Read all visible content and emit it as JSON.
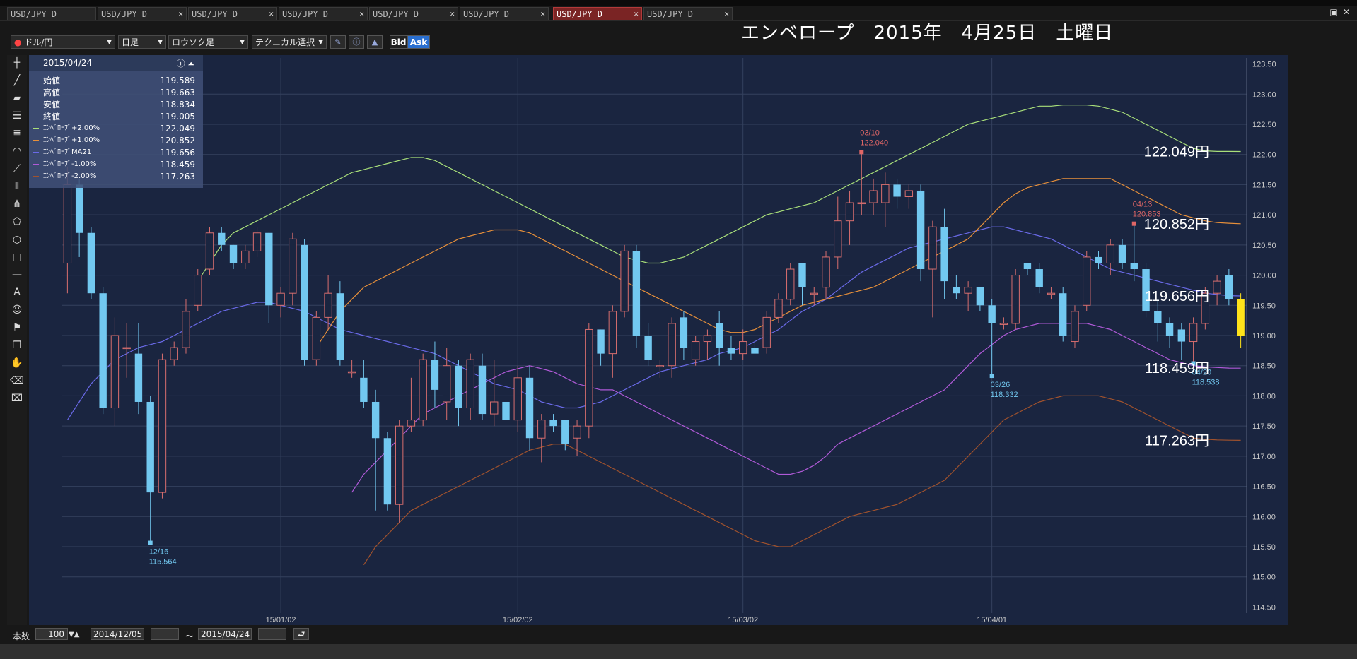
{
  "tabs": [
    {
      "label": "USD/JPY D",
      "active": false
    },
    {
      "label": "USD/JPY D",
      "active": false
    },
    {
      "label": "USD/JPY D",
      "active": false
    },
    {
      "label": "USD/JPY D",
      "active": false
    },
    {
      "label": "USD/JPY D",
      "active": false
    },
    {
      "label": "USD/JPY D",
      "active": false
    },
    {
      "label": "USD/JPY D",
      "active": true
    },
    {
      "label": "USD/JPY D",
      "active": false
    }
  ],
  "toolbar": {
    "pair": "ドル/円",
    "period": "日足",
    "chart_type": "ロウソク足",
    "technical": "テクニカル選択",
    "bid": "Bid",
    "ask": "Ask"
  },
  "overlay_title": "エンベロープ　2015年　4月25日　土曜日",
  "info": {
    "date": "2015/04/24",
    "rows": [
      {
        "label": "始値",
        "value": "119.589"
      },
      {
        "label": "高値",
        "value": "119.663"
      },
      {
        "label": "安値",
        "value": "118.834"
      },
      {
        "label": "終値",
        "value": "119.005"
      }
    ],
    "indicators": [
      {
        "label": "ｴﾝﾍﾞﾛｰﾌﾟ+2.00%",
        "value": "122.049",
        "color": "#a9e07a"
      },
      {
        "label": "ｴﾝﾍﾞﾛｰﾌﾟ+1.00%",
        "value": "120.852",
        "color": "#e8903a"
      },
      {
        "label": "ｴﾝﾍﾞﾛｰﾌﾟMA21",
        "value": "119.656",
        "color": "#6a6ae8"
      },
      {
        "label": "ｴﾝﾍﾞﾛｰﾌﾟ-1.00%",
        "value": "118.459",
        "color": "#b05ad8"
      },
      {
        "label": "ｴﾝﾍﾞﾛｰﾌﾟ-2.00%",
        "value": "117.263",
        "color": "#a0522d"
      }
    ]
  },
  "colors": {
    "bg": "#1a2540",
    "grid": "#34415e",
    "up": "#d86e6e",
    "down": "#72c8f0",
    "current": "#ffe31a",
    "env_p2": "#a9e07a",
    "env_p1": "#e8903a",
    "ma21": "#6a6ae8",
    "env_m1": "#b05ad8",
    "env_m2": "#a0522d"
  },
  "chart_data": {
    "type": "candlestick",
    "y_ticks": [
      "123.50",
      "123.00",
      "122.50",
      "122.00",
      "121.50",
      "121.00",
      "120.50",
      "120.00",
      "119.50",
      "119.00",
      "118.50",
      "118.00",
      "117.50",
      "117.00",
      "116.50",
      "116.00",
      "115.50",
      "115.00",
      "114.50"
    ],
    "x_ticks": [
      "15/01/02",
      "15/02/02",
      "15/03/02",
      "15/04/01"
    ],
    "x_tick_index": [
      18,
      38,
      57,
      78
    ],
    "ylim": [
      114.4,
      123.6
    ],
    "candles": [
      {
        "o": 120.2,
        "h": 121.8,
        "l": 119.7,
        "c": 121.5
      },
      {
        "o": 121.5,
        "h": 121.6,
        "l": 120.3,
        "c": 120.7
      },
      {
        "o": 120.7,
        "h": 120.8,
        "l": 119.6,
        "c": 119.7
      },
      {
        "o": 119.7,
        "h": 119.8,
        "l": 117.7,
        "c": 117.8
      },
      {
        "o": 117.8,
        "h": 119.3,
        "l": 117.5,
        "c": 119.0
      },
      {
        "o": 118.8,
        "h": 119.2,
        "l": 118.3,
        "c": 118.8
      },
      {
        "o": 118.7,
        "h": 119.2,
        "l": 117.7,
        "c": 117.9
      },
      {
        "o": 117.9,
        "h": 118.0,
        "l": 115.564,
        "c": 116.4
      },
      {
        "o": 116.4,
        "h": 118.7,
        "l": 116.3,
        "c": 118.6
      },
      {
        "o": 118.6,
        "h": 118.9,
        "l": 118.5,
        "c": 118.8
      },
      {
        "o": 118.8,
        "h": 119.6,
        "l": 118.7,
        "c": 119.4
      },
      {
        "o": 119.5,
        "h": 120.1,
        "l": 119.4,
        "c": 120.0
      },
      {
        "o": 120.1,
        "h": 120.8,
        "l": 120.0,
        "c": 120.7
      },
      {
        "o": 120.7,
        "h": 120.8,
        "l": 120.4,
        "c": 120.5
      },
      {
        "o": 120.5,
        "h": 120.5,
        "l": 120.1,
        "c": 120.2
      },
      {
        "o": 120.2,
        "h": 120.5,
        "l": 120.1,
        "c": 120.4
      },
      {
        "o": 120.4,
        "h": 120.8,
        "l": 120.3,
        "c": 120.7
      },
      {
        "o": 120.7,
        "h": 120.7,
        "l": 119.2,
        "c": 119.5
      },
      {
        "o": 119.5,
        "h": 119.8,
        "l": 119.3,
        "c": 119.7
      },
      {
        "o": 119.7,
        "h": 120.7,
        "l": 119.5,
        "c": 120.6
      },
      {
        "o": 120.5,
        "h": 120.6,
        "l": 118.5,
        "c": 118.6
      },
      {
        "o": 118.6,
        "h": 119.4,
        "l": 118.5,
        "c": 119.3
      },
      {
        "o": 119.3,
        "h": 120.0,
        "l": 119.1,
        "c": 119.7
      },
      {
        "o": 119.7,
        "h": 119.9,
        "l": 118.5,
        "c": 118.6
      },
      {
        "o": 118.4,
        "h": 118.6,
        "l": 118.3,
        "c": 118.4
      },
      {
        "o": 118.3,
        "h": 118.6,
        "l": 117.8,
        "c": 117.9
      },
      {
        "o": 117.9,
        "h": 118.1,
        "l": 116.1,
        "c": 117.3
      },
      {
        "o": 117.3,
        "h": 117.4,
        "l": 116.1,
        "c": 116.2
      },
      {
        "o": 116.2,
        "h": 117.6,
        "l": 115.9,
        "c": 117.5
      },
      {
        "o": 117.5,
        "h": 118.3,
        "l": 117.4,
        "c": 117.6
      },
      {
        "o": 117.6,
        "h": 118.7,
        "l": 117.5,
        "c": 118.6
      },
      {
        "o": 118.6,
        "h": 118.9,
        "l": 117.8,
        "c": 118.1
      },
      {
        "o": 117.9,
        "h": 118.8,
        "l": 117.6,
        "c": 118.5
      },
      {
        "o": 118.5,
        "h": 118.6,
        "l": 117.5,
        "c": 117.8
      },
      {
        "o": 117.8,
        "h": 118.7,
        "l": 117.6,
        "c": 118.6
      },
      {
        "o": 118.5,
        "h": 118.7,
        "l": 117.6,
        "c": 117.7
      },
      {
        "o": 117.7,
        "h": 118.6,
        "l": 117.5,
        "c": 117.9
      },
      {
        "o": 117.9,
        "h": 117.9,
        "l": 117.5,
        "c": 117.6
      },
      {
        "o": 117.6,
        "h": 118.5,
        "l": 117.4,
        "c": 118.3
      },
      {
        "o": 118.3,
        "h": 118.5,
        "l": 117.1,
        "c": 117.3
      },
      {
        "o": 117.3,
        "h": 117.7,
        "l": 116.9,
        "c": 117.6
      },
      {
        "o": 117.6,
        "h": 117.7,
        "l": 117.4,
        "c": 117.5
      },
      {
        "o": 117.6,
        "h": 117.6,
        "l": 117.1,
        "c": 117.2
      },
      {
        "o": 117.3,
        "h": 117.6,
        "l": 117.0,
        "c": 117.5
      },
      {
        "o": 117.5,
        "h": 119.2,
        "l": 117.3,
        "c": 119.1
      },
      {
        "o": 119.1,
        "h": 119.1,
        "l": 118.5,
        "c": 118.7
      },
      {
        "o": 118.7,
        "h": 119.5,
        "l": 118.3,
        "c": 119.4
      },
      {
        "o": 119.4,
        "h": 120.5,
        "l": 119.3,
        "c": 120.4
      },
      {
        "o": 120.4,
        "h": 120.5,
        "l": 118.8,
        "c": 119.0
      },
      {
        "o": 119.0,
        "h": 119.2,
        "l": 118.5,
        "c": 118.6
      },
      {
        "o": 118.5,
        "h": 118.6,
        "l": 118.3,
        "c": 118.5
      },
      {
        "o": 118.5,
        "h": 119.3,
        "l": 118.3,
        "c": 119.2
      },
      {
        "o": 119.3,
        "h": 119.4,
        "l": 118.6,
        "c": 118.8
      },
      {
        "o": 118.6,
        "h": 119.0,
        "l": 118.5,
        "c": 118.9
      },
      {
        "o": 118.9,
        "h": 119.1,
        "l": 118.6,
        "c": 119.0
      },
      {
        "o": 119.2,
        "h": 119.4,
        "l": 118.5,
        "c": 118.8
      },
      {
        "o": 118.8,
        "h": 119.0,
        "l": 118.6,
        "c": 118.7
      },
      {
        "o": 118.7,
        "h": 119.1,
        "l": 118.6,
        "c": 118.9
      },
      {
        "o": 118.8,
        "h": 118.9,
        "l": 118.7,
        "c": 118.7
      },
      {
        "o": 118.8,
        "h": 119.4,
        "l": 118.7,
        "c": 119.3
      },
      {
        "o": 119.3,
        "h": 119.7,
        "l": 119.2,
        "c": 119.6
      },
      {
        "o": 119.6,
        "h": 120.2,
        "l": 119.5,
        "c": 120.1
      },
      {
        "o": 120.2,
        "h": 120.2,
        "l": 119.5,
        "c": 119.8
      },
      {
        "o": 119.7,
        "h": 119.8,
        "l": 119.5,
        "c": 119.7
      },
      {
        "o": 119.8,
        "h": 120.4,
        "l": 119.6,
        "c": 120.3
      },
      {
        "o": 120.3,
        "h": 121.3,
        "l": 120.1,
        "c": 120.9
      },
      {
        "o": 120.9,
        "h": 121.4,
        "l": 120.5,
        "c": 121.2
      },
      {
        "o": 121.2,
        "h": 122.04,
        "l": 121.0,
        "c": 121.2
      },
      {
        "o": 121.2,
        "h": 121.6,
        "l": 121.0,
        "c": 121.4
      },
      {
        "o": 121.2,
        "h": 121.7,
        "l": 120.8,
        "c": 121.5
      },
      {
        "o": 121.5,
        "h": 121.6,
        "l": 121.1,
        "c": 121.3
      },
      {
        "o": 121.3,
        "h": 121.5,
        "l": 121.1,
        "c": 121.4
      },
      {
        "o": 121.4,
        "h": 121.5,
        "l": 119.9,
        "c": 120.1
      },
      {
        "o": 120.1,
        "h": 120.9,
        "l": 119.3,
        "c": 120.8
      },
      {
        "o": 120.8,
        "h": 121.1,
        "l": 119.6,
        "c": 119.9
      },
      {
        "o": 119.8,
        "h": 120.0,
        "l": 119.6,
        "c": 119.7
      },
      {
        "o": 119.7,
        "h": 119.9,
        "l": 119.4,
        "c": 119.8
      },
      {
        "o": 119.8,
        "h": 119.8,
        "l": 119.4,
        "c": 119.5
      },
      {
        "o": 119.5,
        "h": 119.6,
        "l": 118.332,
        "c": 119.2
      },
      {
        "o": 119.2,
        "h": 119.3,
        "l": 119.1,
        "c": 119.2
      },
      {
        "o": 119.2,
        "h": 120.1,
        "l": 119.1,
        "c": 120.0
      },
      {
        "o": 120.2,
        "h": 120.2,
        "l": 120.0,
        "c": 120.1
      },
      {
        "o": 120.1,
        "h": 120.2,
        "l": 119.7,
        "c": 119.8
      },
      {
        "o": 119.7,
        "h": 119.8,
        "l": 119.6,
        "c": 119.7
      },
      {
        "o": 119.7,
        "h": 119.8,
        "l": 118.9,
        "c": 119.0
      },
      {
        "o": 118.9,
        "h": 119.5,
        "l": 118.8,
        "c": 119.4
      },
      {
        "o": 119.5,
        "h": 120.4,
        "l": 119.4,
        "c": 120.3
      },
      {
        "o": 120.3,
        "h": 120.4,
        "l": 120.1,
        "c": 120.2
      },
      {
        "o": 120.2,
        "h": 120.6,
        "l": 120.0,
        "c": 120.5
      },
      {
        "o": 120.5,
        "h": 120.6,
        "l": 120.1,
        "c": 120.2
      },
      {
        "o": 120.2,
        "h": 120.853,
        "l": 119.9,
        "c": 120.1
      },
      {
        "o": 120.1,
        "h": 120.2,
        "l": 119.3,
        "c": 119.4
      },
      {
        "o": 119.4,
        "h": 119.6,
        "l": 118.9,
        "c": 119.2
      },
      {
        "o": 119.2,
        "h": 119.3,
        "l": 118.8,
        "c": 119.0
      },
      {
        "o": 119.1,
        "h": 119.2,
        "l": 118.6,
        "c": 118.9
      },
      {
        "o": 118.9,
        "h": 119.3,
        "l": 118.538,
        "c": 119.2
      },
      {
        "o": 119.2,
        "h": 119.8,
        "l": 119.1,
        "c": 119.7
      },
      {
        "o": 119.7,
        "h": 120.0,
        "l": 119.5,
        "c": 119.9
      },
      {
        "o": 120.0,
        "h": 120.1,
        "l": 119.5,
        "c": 119.6
      },
      {
        "o": 119.6,
        "h": 119.7,
        "l": 118.8,
        "c": 119.0
      }
    ],
    "envelope": {
      "ma21": [
        117.6,
        117.9,
        118.2,
        118.4,
        118.6,
        118.7,
        118.8,
        118.85,
        118.9,
        119.0,
        119.1,
        119.2,
        119.3,
        119.4,
        119.45,
        119.5,
        119.55,
        119.55,
        119.5,
        119.45,
        119.4,
        119.3,
        119.2,
        119.1,
        119.05,
        119.0,
        118.95,
        118.9,
        118.85,
        118.8,
        118.75,
        118.7,
        118.6,
        118.5,
        118.4,
        118.3,
        118.2,
        118.15,
        118.1,
        118.0,
        117.9,
        117.85,
        117.8,
        117.8,
        117.85,
        117.9,
        118.0,
        118.1,
        118.2,
        118.3,
        118.4,
        118.45,
        118.5,
        118.55,
        118.6,
        118.7,
        118.75,
        118.8,
        118.9,
        119.0,
        119.1,
        119.25,
        119.4,
        119.5,
        119.6,
        119.75,
        119.9,
        120.05,
        120.15,
        120.25,
        120.35,
        120.45,
        120.5,
        120.55,
        120.6,
        120.65,
        120.7,
        120.75,
        120.8,
        120.8,
        120.75,
        120.7,
        120.65,
        120.6,
        120.5,
        120.4,
        120.3,
        120.2,
        120.1,
        120.05,
        120.0,
        119.95,
        119.9,
        119.85,
        119.8,
        119.75,
        119.7,
        119.68,
        119.66,
        119.656
      ],
      "env_p2": [
        119.9,
        120.2,
        120.5,
        120.7,
        120.8,
        120.9,
        121.0,
        121.1,
        121.2,
        121.3,
        121.4,
        121.5,
        121.6,
        121.7,
        121.75,
        121.8,
        121.85,
        121.9,
        121.95,
        121.95,
        121.9,
        121.8,
        121.7,
        121.6,
        121.5,
        121.4,
        121.3,
        121.2,
        121.1,
        121.0,
        120.9,
        120.8,
        120.7,
        120.6,
        120.5,
        120.4,
        120.3,
        120.25,
        120.2,
        120.2,
        120.25,
        120.3,
        120.4,
        120.5,
        120.6,
        120.7,
        120.8,
        120.9,
        121.0,
        121.05,
        121.1,
        121.15,
        121.2,
        121.3,
        121.4,
        121.5,
        121.6,
        121.7,
        121.8,
        121.9,
        122.0,
        122.1,
        122.2,
        122.3,
        122.4,
        122.5,
        122.55,
        122.6,
        122.65,
        122.7,
        122.75,
        122.8,
        122.8,
        122.82,
        122.82,
        122.82,
        122.8,
        122.75,
        122.7,
        122.6,
        122.5,
        122.4,
        122.3,
        122.2,
        122.1,
        122.06,
        122.05,
        122.05,
        122.049
      ],
      "env_p1": [
        118.8,
        119.1,
        119.4,
        119.6,
        119.8,
        119.9,
        120.0,
        120.1,
        120.2,
        120.3,
        120.4,
        120.5,
        120.6,
        120.65,
        120.7,
        120.75,
        120.75,
        120.75,
        120.7,
        120.6,
        120.5,
        120.4,
        120.3,
        120.2,
        120.1,
        120.0,
        119.9,
        119.8,
        119.7,
        119.6,
        119.5,
        119.4,
        119.3,
        119.2,
        119.1,
        119.05,
        119.05,
        119.1,
        119.2,
        119.3,
        119.4,
        119.5,
        119.55,
        119.6,
        119.65,
        119.7,
        119.75,
        119.8,
        119.9,
        120.0,
        120.1,
        120.2,
        120.3,
        120.4,
        120.5,
        120.6,
        120.8,
        121.0,
        121.2,
        121.35,
        121.45,
        121.5,
        121.55,
        121.6,
        121.6,
        121.6,
        121.6,
        121.6,
        121.5,
        121.4,
        121.3,
        121.2,
        121.1,
        121.0,
        120.95,
        120.9,
        120.87,
        120.86,
        120.852
      ],
      "env_m1": [
        116.4,
        116.7,
        116.9,
        117.1,
        117.3,
        117.5,
        117.7,
        117.8,
        117.9,
        118.0,
        118.1,
        118.2,
        118.3,
        118.4,
        118.45,
        118.5,
        118.45,
        118.4,
        118.3,
        118.2,
        118.15,
        118.1,
        118.1,
        118.0,
        117.9,
        117.8,
        117.7,
        117.6,
        117.5,
        117.4,
        117.3,
        117.2,
        117.1,
        117.0,
        116.9,
        116.8,
        116.7,
        116.7,
        116.75,
        116.85,
        117.0,
        117.2,
        117.3,
        117.4,
        117.5,
        117.6,
        117.7,
        117.8,
        117.9,
        118.0,
        118.1,
        118.3,
        118.5,
        118.7,
        118.85,
        119.0,
        119.1,
        119.15,
        119.2,
        119.2,
        119.2,
        119.2,
        119.2,
        119.15,
        119.1,
        119.0,
        118.9,
        118.8,
        118.7,
        118.6,
        118.55,
        118.5,
        118.48,
        118.47,
        118.46,
        118.459
      ],
      "env_m2": [
        115.2,
        115.5,
        115.7,
        115.9,
        116.1,
        116.2,
        116.3,
        116.4,
        116.5,
        116.6,
        116.7,
        116.8,
        116.9,
        117.0,
        117.1,
        117.15,
        117.2,
        117.2,
        117.1,
        117.0,
        116.9,
        116.8,
        116.7,
        116.6,
        116.5,
        116.4,
        116.3,
        116.2,
        116.1,
        116.0,
        115.9,
        115.8,
        115.7,
        115.6,
        115.55,
        115.5,
        115.5,
        115.6,
        115.7,
        115.8,
        115.9,
        116.0,
        116.05,
        116.1,
        116.15,
        116.2,
        116.3,
        116.4,
        116.5,
        116.6,
        116.8,
        117.0,
        117.2,
        117.4,
        117.6,
        117.7,
        117.8,
        117.9,
        117.95,
        118.0,
        118.0,
        118.0,
        118.0,
        117.95,
        117.9,
        117.8,
        117.7,
        117.6,
        117.5,
        117.4,
        117.3,
        117.28,
        117.27,
        117.265,
        117.263
      ]
    },
    "annotations": [
      {
        "date": "12/16",
        "value": "115.564",
        "idx": 7,
        "price": 115.564,
        "pos": "low",
        "color": "#72c8f0"
      },
      {
        "date": "03/10",
        "value": "122.040",
        "idx": 67,
        "price": 122.04,
        "pos": "high",
        "color": "#e06666"
      },
      {
        "date": "03/26",
        "value": "118.332",
        "idx": 78,
        "price": 118.332,
        "pos": "low",
        "color": "#72c8f0"
      },
      {
        "date": "04/13",
        "value": "120.853",
        "idx": 90,
        "price": 120.853,
        "pos": "high",
        "color": "#e06666"
      },
      {
        "date": "04/20",
        "value": "118.538",
        "idx": 95,
        "price": 118.538,
        "pos": "low",
        "color": "#72c8f0"
      }
    ],
    "right_labels": [
      {
        "text": "122.049円",
        "price": 122.049
      },
      {
        "text": "120.852円",
        "price": 120.852
      },
      {
        "text": "119.656円",
        "price": 119.656
      },
      {
        "text": "118.459円",
        "price": 118.459
      },
      {
        "text": "117.263円",
        "price": 117.263
      }
    ]
  },
  "status": {
    "count_label": "本数",
    "count": "100",
    "from": "2014/12/05",
    "tilde": "～",
    "to": "2015/04/24"
  }
}
